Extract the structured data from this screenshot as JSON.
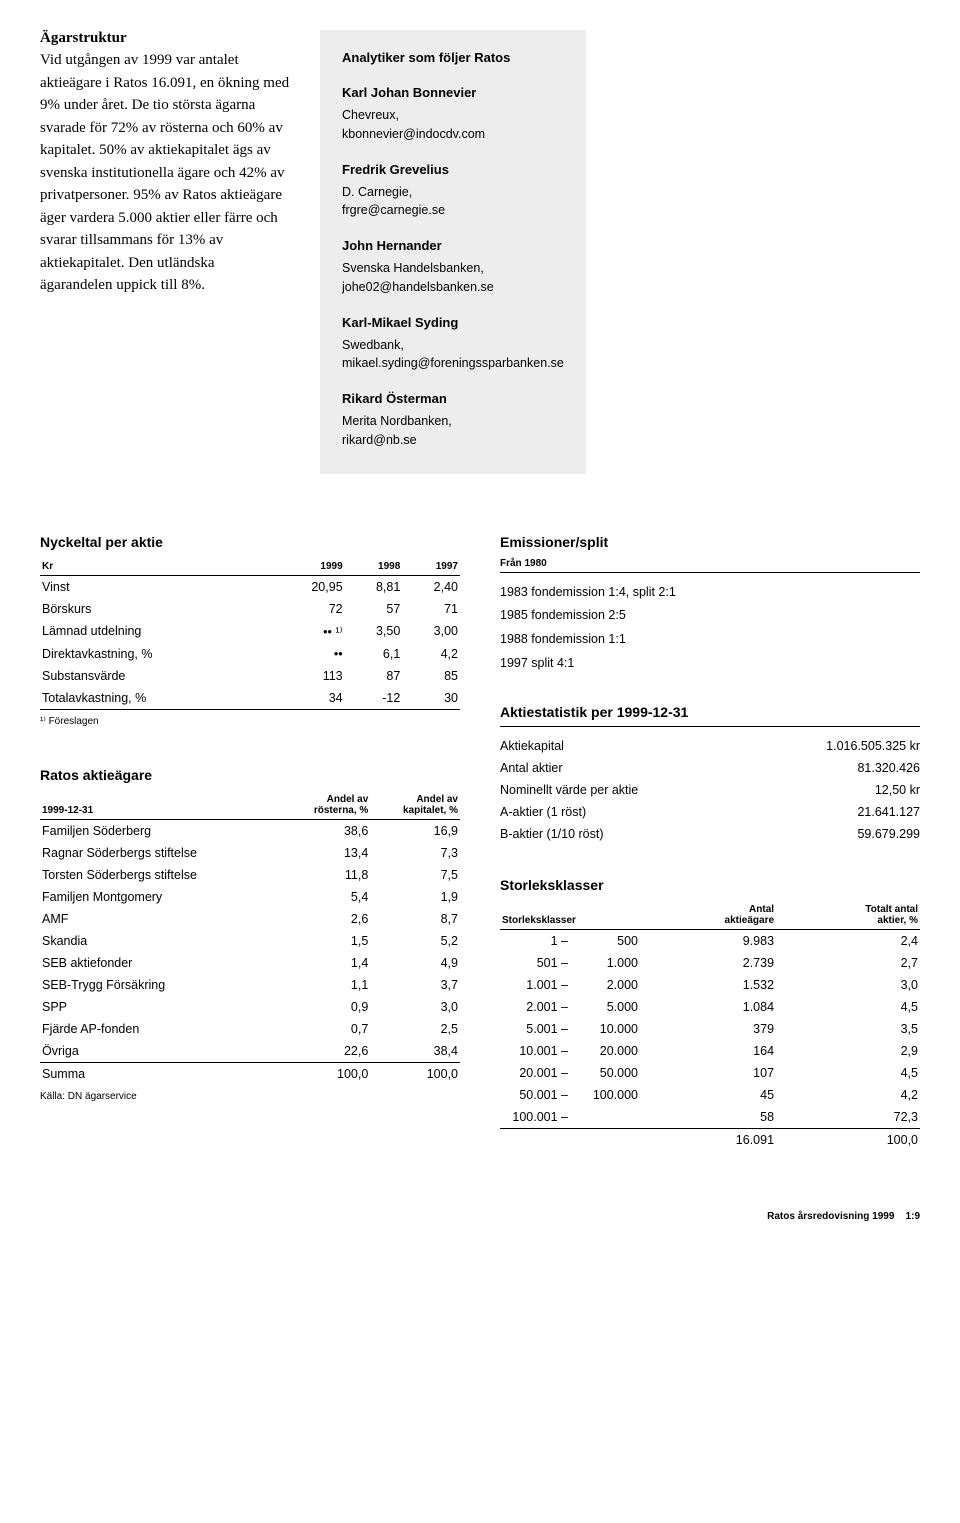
{
  "agarstruktur": {
    "heading": "Ägarstruktur",
    "body": "Vid utgången av 1999 var antalet aktieägare i Ratos 16.091, en ökning med 9% under året. De tio största ägarna svarade för 72% av rösterna och 60% av kapitalet. 50% av aktiekapitalet ägs av svenska institutionella ägare och 42% av privatpersoner. 95% av Ratos aktieägare äger vardera 5.000 aktier eller färre och svarar tillsammans för 13% av aktiekapitalet. Den utländska ägarandelen uppick till 8%."
  },
  "analytiker": {
    "heading": "Analytiker som följer Ratos",
    "items": [
      {
        "name": "Karl Johan Bonnevier",
        "org": "Chevreux,",
        "email": "kbonnevier@indocdv.com"
      },
      {
        "name": "Fredrik Grevelius",
        "org": "D. Carnegie,",
        "email": "frgre@carnegie.se"
      },
      {
        "name": "John Hernander",
        "org": "Svenska Handelsbanken,",
        "email": "johe02@handelsbanken.se"
      },
      {
        "name": "Karl-Mikael Syding",
        "org": "Swedbank,",
        "email": "mikael.syding@foreningssparbanken.se"
      },
      {
        "name": "Rikard Österman",
        "org": "Merita Nordbanken,",
        "email": "rikard@nb.se"
      }
    ]
  },
  "nyckeltal": {
    "heading": "Nyckeltal per aktie",
    "col0": "Kr",
    "col1": "1999",
    "col2": "1998",
    "col3": "1997",
    "rows": [
      {
        "label": "Vinst",
        "c1": "20,95",
        "c2": "8,81",
        "c3": "2,40"
      },
      {
        "label": "Börskurs",
        "c1": "72",
        "c2": "57",
        "c3": "71"
      },
      {
        "label": "Lämnad utdelning",
        "c1": "•• ¹⁾",
        "c2": "3,50",
        "c3": "3,00"
      },
      {
        "label": "Direktavkastning, %",
        "c1": "••",
        "c2": "6,1",
        "c3": "4,2"
      },
      {
        "label": "Substansvärde",
        "c1": "113",
        "c2": "87",
        "c3": "85"
      },
      {
        "label": "Totalavkastning, %",
        "c1": "34",
        "c2": "-12",
        "c3": "30"
      }
    ],
    "footnote": "¹⁾ Föreslagen"
  },
  "aktieagare": {
    "heading": "Ratos aktieägare",
    "col0": "1999-12-31",
    "col1a": "Andel av",
    "col1b": "rösterna, %",
    "col2a": "Andel av",
    "col2b": "kapitalet, %",
    "rows": [
      {
        "label": "Familjen Söderberg",
        "c1": "38,6",
        "c2": "16,9"
      },
      {
        "label": "Ragnar Söderbergs stiftelse",
        "c1": "13,4",
        "c2": "7,3"
      },
      {
        "label": "Torsten Söderbergs stiftelse",
        "c1": "11,8",
        "c2": "7,5"
      },
      {
        "label": "Familjen Montgomery",
        "c1": "5,4",
        "c2": "1,9"
      },
      {
        "label": "AMF",
        "c1": "2,6",
        "c2": "8,7"
      },
      {
        "label": "Skandia",
        "c1": "1,5",
        "c2": "5,2"
      },
      {
        "label": "SEB aktiefonder",
        "c1": "1,4",
        "c2": "4,9"
      },
      {
        "label": "SEB-Trygg Försäkring",
        "c1": "1,1",
        "c2": "3,7"
      },
      {
        "label": "SPP",
        "c1": "0,9",
        "c2": "3,0"
      },
      {
        "label": "Fjärde AP-fonden",
        "c1": "0,7",
        "c2": "2,5"
      },
      {
        "label": "Övriga",
        "c1": "22,6",
        "c2": "38,4"
      }
    ],
    "sum": {
      "label": "Summa",
      "c1": "100,0",
      "c2": "100,0"
    },
    "source": "Källa: DN ägarservice"
  },
  "emissioner": {
    "heading": "Emissioner/split",
    "sub": "Från 1980",
    "lines": [
      "1983  fondemission 1:4, split 2:1",
      "1985  fondemission 2:5",
      "1988  fondemission 1:1",
      "1997  split 4:1"
    ]
  },
  "aktiestatistik": {
    "heading": "Aktiestatistik per 1999-12-31",
    "rows": [
      {
        "label": "Aktiekapital",
        "val": "1.016.505.325 kr"
      },
      {
        "label": "Antal aktier",
        "val": "81.320.426"
      },
      {
        "label": "Nominellt värde per aktie",
        "val": "12,50 kr"
      },
      {
        "label": "A-aktier (1 röst)",
        "val": "21.641.127"
      },
      {
        "label": "B-aktier (1/10 röst)",
        "val": "59.679.299"
      }
    ]
  },
  "storleksklasser": {
    "heading": "Storleksklasser",
    "col0": "Storleksklasser",
    "col1a": "Antal",
    "col1b": "aktieägare",
    "col2a": "Totalt antal",
    "col2b": "aktier, %",
    "rows": [
      {
        "r1": "1 –",
        "r2": "500",
        "c1": "9.983",
        "c2": "2,4"
      },
      {
        "r1": "501 –",
        "r2": "1.000",
        "c1": "2.739",
        "c2": "2,7"
      },
      {
        "r1": "1.001 –",
        "r2": "2.000",
        "c1": "1.532",
        "c2": "3,0"
      },
      {
        "r1": "2.001 –",
        "r2": "5.000",
        "c1": "1.084",
        "c2": "4,5"
      },
      {
        "r1": "5.001 –",
        "r2": "10.000",
        "c1": "379",
        "c2": "3,5"
      },
      {
        "r1": "10.001 –",
        "r2": "20.000",
        "c1": "164",
        "c2": "2,9"
      },
      {
        "r1": "20.001 –",
        "r2": "50.000",
        "c1": "107",
        "c2": "4,5"
      },
      {
        "r1": "50.001 –",
        "r2": "100.000",
        "c1": "45",
        "c2": "4,2"
      },
      {
        "r1": "100.001 –",
        "r2": "",
        "c1": "58",
        "c2": "72,3"
      }
    ],
    "sum": {
      "r1": "",
      "r2": "",
      "c1": "16.091",
      "c2": "100,0"
    }
  },
  "footer": {
    "text": "Ratos årsredovisning 1999",
    "page": "1:9"
  }
}
